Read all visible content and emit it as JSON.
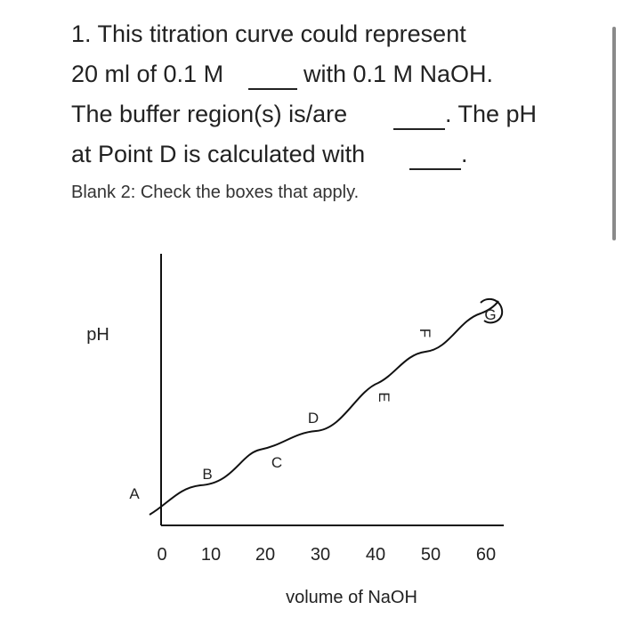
{
  "question": {
    "line1": "1. This titration curve could represent",
    "line2_start": "20 ml of 0.1 M",
    "line2_end": "with 0.1 M NaOH.",
    "line3_start": "The buffer region(s) is/are",
    "line3_end": ". The pH",
    "line4_start": "at Point D is calculated with",
    "line4_end": ".",
    "instruction": "Blank 2: Check the boxes that apply."
  },
  "figure": {
    "y_label": "pH",
    "x_label": "volume of NaOH",
    "x_ticks": [
      "0",
      "10",
      "20",
      "30",
      "40",
      "50",
      "60"
    ],
    "points": [
      "A",
      "B",
      "C",
      "D",
      "E",
      "F",
      "G"
    ]
  }
}
